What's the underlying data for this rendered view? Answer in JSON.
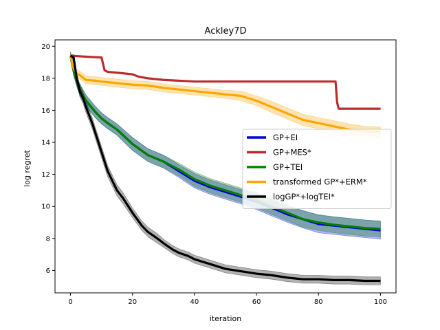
{
  "chart_data": {
    "type": "line",
    "title": "Ackley7D",
    "xlabel": "iteration",
    "ylabel": "log regret",
    "xlim": [
      -5,
      105
    ],
    "ylim": [
      4.6,
      20.4
    ],
    "xticks": [
      0,
      20,
      40,
      60,
      80,
      100
    ],
    "yticks": [
      6,
      8,
      10,
      12,
      14,
      16,
      18,
      20
    ],
    "legend_position": "center-right",
    "series": [
      {
        "name": "GP+EI",
        "color": "#0000dd",
        "x": [
          0,
          1,
          2,
          3,
          5,
          8,
          10,
          12,
          15,
          20,
          25,
          30,
          35,
          40,
          45,
          50,
          55,
          60,
          65,
          70,
          75,
          80,
          85,
          90,
          95,
          100
        ],
        "y": [
          19.4,
          18.5,
          17.8,
          17.3,
          16.6,
          15.9,
          15.5,
          15.2,
          14.8,
          13.9,
          13.2,
          12.8,
          12.2,
          11.6,
          11.2,
          10.9,
          10.6,
          10.3,
          9.9,
          9.5,
          9.2,
          8.9,
          8.8,
          8.7,
          8.6,
          8.5
        ],
        "band": [
          0.25,
          0.3,
          0.3,
          0.35,
          0.35,
          0.35,
          0.35,
          0.35,
          0.35,
          0.4,
          0.4,
          0.4,
          0.4,
          0.45,
          0.45,
          0.45,
          0.45,
          0.5,
          0.5,
          0.5,
          0.55,
          0.55,
          0.55,
          0.55,
          0.55,
          0.55
        ]
      },
      {
        "name": "GP+MES*",
        "color": "#bb2d2d",
        "x": [
          0,
          1,
          5,
          10,
          10.5,
          11,
          12,
          15,
          20,
          22,
          25,
          30,
          40,
          60,
          70,
          80,
          85.5,
          86,
          86.5,
          90,
          100
        ],
        "y": [
          19.4,
          19.4,
          19.35,
          19.3,
          18.9,
          18.5,
          18.4,
          18.35,
          18.25,
          18.1,
          18.0,
          17.9,
          17.8,
          17.8,
          17.8,
          17.8,
          17.8,
          16.5,
          16.1,
          16.1,
          16.1
        ],
        "band": [
          0.05,
          0.05,
          0.05,
          0.05,
          0.05,
          0.05,
          0.05,
          0.05,
          0.05,
          0.05,
          0.05,
          0.05,
          0.05,
          0.05,
          0.05,
          0.05,
          0.05,
          0.05,
          0.05,
          0.05,
          0.05
        ]
      },
      {
        "name": "GP+TEI",
        "color": "#008000",
        "x": [
          0,
          1,
          2,
          3,
          5,
          8,
          10,
          12,
          15,
          20,
          25,
          30,
          35,
          40,
          45,
          50,
          55,
          60,
          65,
          70,
          75,
          80,
          85,
          90,
          95,
          100
        ],
        "y": [
          19.4,
          18.5,
          17.8,
          17.3,
          16.6,
          15.9,
          15.5,
          15.2,
          14.8,
          13.9,
          13.2,
          12.8,
          12.3,
          11.7,
          11.3,
          11.0,
          10.7,
          10.4,
          10.0,
          9.6,
          9.2,
          9.0,
          8.85,
          8.75,
          8.65,
          8.6
        ],
        "band": [
          0.25,
          0.3,
          0.3,
          0.35,
          0.35,
          0.35,
          0.35,
          0.35,
          0.35,
          0.4,
          0.4,
          0.4,
          0.4,
          0.45,
          0.45,
          0.45,
          0.45,
          0.5,
          0.5,
          0.5,
          0.5,
          0.5,
          0.5,
          0.5,
          0.5,
          0.5
        ]
      },
      {
        "name": "transformed GP*+ERM*",
        "color": "#ffa500",
        "x": [
          0,
          1,
          2,
          3,
          5,
          8,
          10,
          15,
          20,
          25,
          30,
          35,
          40,
          45,
          50,
          55,
          60,
          65,
          70,
          75,
          80,
          85,
          90,
          95,
          100
        ],
        "y": [
          19.4,
          18.6,
          18.3,
          18.2,
          17.9,
          17.85,
          17.8,
          17.7,
          17.6,
          17.55,
          17.4,
          17.3,
          17.2,
          17.1,
          17.0,
          16.9,
          16.6,
          16.2,
          15.8,
          15.4,
          15.2,
          15.0,
          14.8,
          14.7,
          14.65
        ],
        "band": [
          0.1,
          0.2,
          0.25,
          0.25,
          0.25,
          0.25,
          0.25,
          0.25,
          0.25,
          0.25,
          0.25,
          0.25,
          0.25,
          0.25,
          0.25,
          0.3,
          0.3,
          0.35,
          0.35,
          0.35,
          0.35,
          0.35,
          0.35,
          0.3,
          0.3
        ]
      },
      {
        "name": "logGP*+logTEI*",
        "color": "#000000",
        "x": [
          0,
          1,
          2,
          3,
          4,
          5,
          7,
          10,
          12,
          15,
          17,
          20,
          23,
          25,
          28,
          30,
          33,
          35,
          38,
          40,
          45,
          50,
          55,
          60,
          65,
          70,
          75,
          80,
          85,
          90,
          95,
          100
        ],
        "y": [
          19.4,
          19.3,
          18.0,
          17.2,
          16.8,
          16.2,
          15.2,
          13.4,
          12.2,
          11.0,
          10.5,
          9.6,
          8.8,
          8.4,
          8.0,
          7.7,
          7.3,
          7.1,
          6.9,
          6.7,
          6.4,
          6.1,
          5.95,
          5.8,
          5.7,
          5.55,
          5.45,
          5.45,
          5.4,
          5.4,
          5.35,
          5.35
        ],
        "band": [
          0.05,
          0.2,
          0.3,
          0.35,
          0.35,
          0.35,
          0.35,
          0.35,
          0.35,
          0.35,
          0.35,
          0.3,
          0.3,
          0.3,
          0.3,
          0.25,
          0.25,
          0.25,
          0.25,
          0.25,
          0.25,
          0.25,
          0.25,
          0.25,
          0.25,
          0.25,
          0.25,
          0.25,
          0.25,
          0.25,
          0.25,
          0.25
        ]
      }
    ]
  }
}
